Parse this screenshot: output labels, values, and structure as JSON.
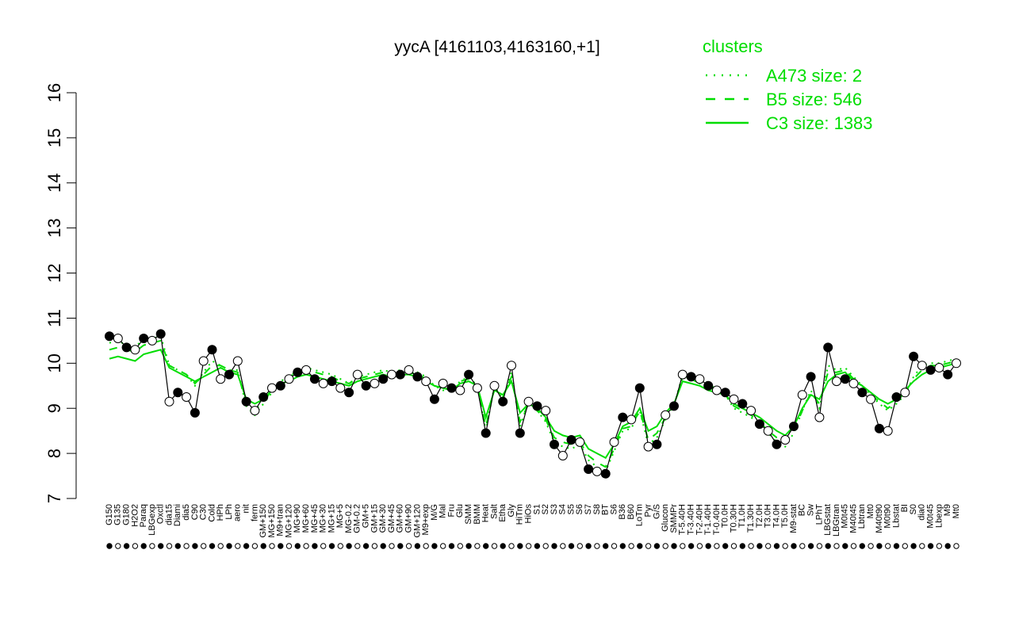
{
  "chart_data": {
    "type": "line",
    "title": "yycA [4161103,4163160,+1]",
    "xlabel": "",
    "ylabel": "",
    "ylim": [
      7,
      16
    ],
    "yticks": [
      7,
      8,
      9,
      10,
      11,
      12,
      13,
      14,
      15,
      16
    ],
    "grid": false,
    "legend": {
      "title": "clusters",
      "position": "top-right",
      "color": "#00dd00",
      "entries": [
        {
          "label": "A473 size: 2",
          "style": "dotted"
        },
        {
          "label": "B5 size: 546",
          "style": "dashed"
        },
        {
          "label": "C3 size: 1383",
          "style": "solid"
        }
      ]
    },
    "x_tick_labels": [
      "G150",
      "G135",
      "G180",
      "H2O2",
      "Paraq",
      "LBGexp",
      "Oxctl",
      "dia15",
      "Diami",
      "dia5",
      "C90",
      "C30",
      "Cold",
      "HPh",
      "LPh",
      "aero",
      "nit",
      "ferm",
      "GM+150",
      "MG+150",
      "M9+tran",
      "MG+120",
      "MG+90",
      "MG+60",
      "MG+45",
      "MG+30",
      "MG+15",
      "MG+5",
      "MG-0.2",
      "GM-0.2",
      "GM+5",
      "GM+15",
      "GM+30",
      "GM+45",
      "GM+60",
      "GM+90",
      "GM+120",
      "M9+exp",
      "M/G",
      "Mal",
      "Fru",
      "Glu",
      "SMM",
      "BMM",
      "Heat",
      "Salt",
      "Etha",
      "Gly",
      "HiTm",
      "HiOs",
      "S1",
      "S2",
      "S3",
      "S4",
      "S5",
      "S6",
      "S7",
      "S8",
      "BT",
      "S6",
      "B36",
      "B60",
      "LoTm",
      "Pyr",
      "G/S",
      "Glucon",
      "SMMPr",
      "T-5.40H",
      "T-3.40H",
      "T-2.40H",
      "T-1.40H",
      "T-0.40H",
      "T0.0H",
      "T0.30H",
      "T1.0H",
      "T1.30H",
      "T2.0H",
      "T3.0H",
      "T4.0H",
      "T5.0H",
      "M9-stat",
      "BC",
      "Sw",
      "LPhT",
      "LBGstat",
      "LBGtran",
      "M0t45",
      "M40t45",
      "Lbtran",
      "Mt0",
      "M40t90",
      "M0t90",
      "Lbstat",
      "BI",
      "S0",
      "dia0",
      "M0t45",
      "Lbexp",
      "M9",
      "Mt0"
    ],
    "series": [
      {
        "style": "solid",
        "color": "#00dd00",
        "values": [
          10.1,
          10.15,
          10.1,
          10.05,
          10.2,
          10.25,
          10.3,
          9.9,
          9.8,
          9.7,
          9.6,
          9.7,
          9.8,
          9.9,
          9.8,
          9.75,
          9.2,
          9.1,
          9.2,
          9.4,
          9.55,
          9.6,
          9.7,
          9.75,
          9.7,
          9.65,
          9.6,
          9.55,
          9.5,
          9.6,
          9.65,
          9.7,
          9.75,
          9.7,
          9.75,
          9.75,
          9.7,
          9.6,
          9.5,
          9.45,
          9.4,
          9.55,
          9.6,
          9.5,
          8.8,
          9.4,
          9.3,
          9.6,
          8.9,
          9.1,
          9.0,
          8.8,
          8.5,
          8.4,
          8.35,
          8.4,
          8.1,
          8.0,
          7.9,
          8.2,
          8.6,
          8.7,
          9.0,
          8.5,
          8.6,
          8.9,
          9.1,
          9.6,
          9.55,
          9.5,
          9.4,
          9.35,
          9.3,
          9.1,
          9.0,
          8.9,
          8.8,
          8.65,
          8.5,
          8.4,
          8.6,
          9.0,
          9.3,
          9.2,
          9.6,
          9.75,
          9.8,
          9.6,
          9.5,
          9.35,
          9.2,
          9.1,
          9.2,
          9.4,
          9.6,
          9.75,
          9.85,
          9.9,
          9.95,
          10.0
        ]
      },
      {
        "style": "dashed",
        "color": "#00dd00",
        "values": [
          10.3,
          10.35,
          10.3,
          10.25,
          10.4,
          10.45,
          10.5,
          9.95,
          9.85,
          9.75,
          9.55,
          9.75,
          9.95,
          9.95,
          9.85,
          9.8,
          9.1,
          8.95,
          9.15,
          9.4,
          9.6,
          9.7,
          9.8,
          9.85,
          9.8,
          9.75,
          9.7,
          9.6,
          9.55,
          9.65,
          9.7,
          9.75,
          9.8,
          9.75,
          9.8,
          9.8,
          9.75,
          9.65,
          9.5,
          9.45,
          9.4,
          9.6,
          9.65,
          9.5,
          8.6,
          9.45,
          9.25,
          9.7,
          8.7,
          9.1,
          8.95,
          8.75,
          8.35,
          8.25,
          8.2,
          8.25,
          7.95,
          7.8,
          7.7,
          8.1,
          8.55,
          8.6,
          8.95,
          8.3,
          8.45,
          8.8,
          9.05,
          9.7,
          9.65,
          9.55,
          9.45,
          9.4,
          9.3,
          9.05,
          8.95,
          8.85,
          8.7,
          8.5,
          8.35,
          8.25,
          8.5,
          8.95,
          9.35,
          9.1,
          9.8,
          9.8,
          9.85,
          9.65,
          9.5,
          9.3,
          9.15,
          9.0,
          9.15,
          9.35,
          9.65,
          9.85,
          9.95,
          9.95,
          10.0,
          10.05
        ]
      },
      {
        "style": "dotted",
        "color": "#00dd00",
        "values": [
          10.45,
          10.5,
          10.4,
          10.35,
          10.55,
          10.55,
          10.6,
          9.95,
          9.85,
          9.75,
          9.5,
          9.8,
          10.05,
          9.95,
          9.85,
          9.85,
          9.05,
          8.85,
          9.1,
          9.35,
          9.6,
          9.7,
          9.85,
          9.9,
          9.85,
          9.8,
          9.75,
          9.65,
          9.55,
          9.7,
          9.75,
          9.8,
          9.85,
          9.8,
          9.85,
          9.85,
          9.8,
          9.7,
          9.5,
          9.4,
          9.4,
          9.6,
          9.7,
          9.5,
          8.5,
          9.5,
          9.2,
          9.8,
          8.6,
          9.15,
          8.95,
          8.7,
          8.25,
          8.15,
          8.1,
          8.2,
          7.85,
          7.7,
          7.6,
          8.05,
          8.5,
          8.55,
          8.95,
          8.2,
          8.35,
          8.75,
          9.05,
          9.75,
          9.7,
          9.6,
          9.5,
          9.45,
          9.3,
          9.0,
          8.9,
          8.8,
          8.65,
          8.45,
          8.25,
          8.15,
          8.45,
          8.95,
          9.4,
          9.0,
          9.95,
          9.85,
          9.9,
          9.7,
          9.5,
          9.3,
          9.1,
          8.95,
          9.1,
          9.3,
          9.7,
          9.95,
          10.0,
          10.0,
          10.05,
          10.1
        ]
      },
      {
        "style": "points",
        "values": [
          10.6,
          10.55,
          10.35,
          10.3,
          10.55,
          10.5,
          10.65,
          9.15,
          9.35,
          9.25,
          8.9,
          10.05,
          10.3,
          9.65,
          9.75,
          10.05,
          9.15,
          8.95,
          9.25,
          9.45,
          9.5,
          9.65,
          9.8,
          9.85,
          9.65,
          9.55,
          9.6,
          9.45,
          9.35,
          9.75,
          9.5,
          9.55,
          9.65,
          9.75,
          9.75,
          9.85,
          9.7,
          9.6,
          9.2,
          9.55,
          9.45,
          9.4,
          9.75,
          9.45,
          8.45,
          9.5,
          9.15,
          9.95,
          8.45,
          9.15,
          9.05,
          8.95,
          8.2,
          7.95,
          8.3,
          8.25,
          7.65,
          7.6,
          7.55,
          8.25,
          8.8,
          8.75,
          9.45,
          8.15,
          8.2,
          8.85,
          9.05,
          9.75,
          9.7,
          9.65,
          9.5,
          9.4,
          9.35,
          9.2,
          9.1,
          8.95,
          8.65,
          8.5,
          8.2,
          8.3,
          8.6,
          9.3,
          9.7,
          8.8,
          10.35,
          9.6,
          9.65,
          9.55,
          9.35,
          9.2,
          8.55,
          8.5,
          9.25,
          9.35,
          10.15,
          9.95,
          9.85,
          9.9,
          9.75,
          10.0
        ]
      }
    ]
  }
}
